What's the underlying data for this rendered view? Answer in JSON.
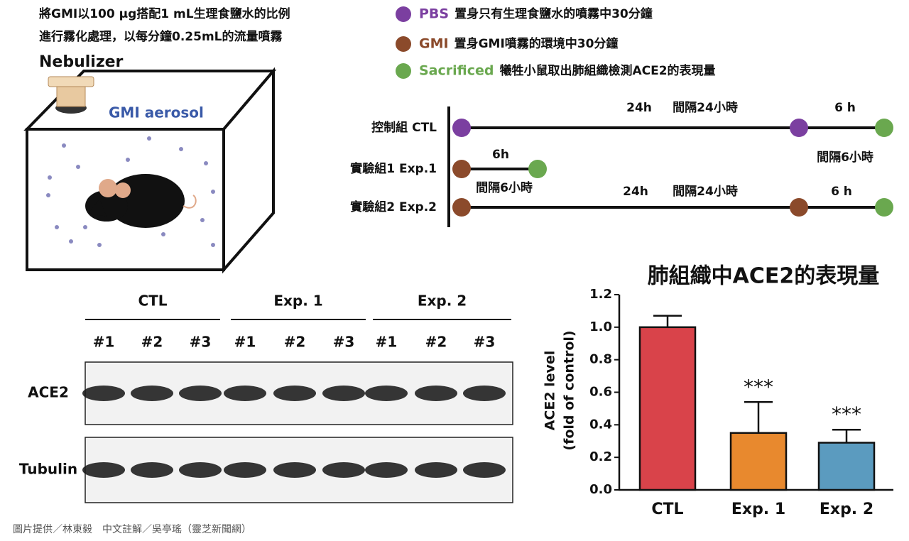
{
  "header": {
    "lines": [
      "將GMI以100 μg搭配1 mL生理食鹽水的比例",
      "進行霧化處理，以每分鐘0.25mL的流量噴霧"
    ]
  },
  "apparatus": {
    "nebulizer": "Nebulizer",
    "aerosol": "GMI aerosol"
  },
  "legend": [
    {
      "key": "PBS",
      "desc": "置身只有生理食鹽水的噴霧中30分鐘",
      "color": "#7b3fa0"
    },
    {
      "key": "GMI",
      "desc": "置身GMI噴霧的環境中30分鐘",
      "color": "#8b4a2b"
    },
    {
      "key": "Sacrificed",
      "desc": "犧牲小鼠取出肺組織檢測ACE2的表現量",
      "color": "#6aa84f"
    }
  ],
  "timeline": {
    "rows": [
      "控制組 CTL",
      "實驗組1 Exp.1",
      "實驗組2 Exp.2"
    ],
    "notes": [
      "24h",
      "間隔24小時",
      "6 h",
      "間隔6小時",
      "6h",
      "間隔6小時",
      "24h",
      "間隔24小時",
      "6 h"
    ]
  },
  "blot": {
    "groups": [
      "CTL",
      "Exp. 1",
      "Exp. 2"
    ],
    "lanes": [
      "#1",
      "#2",
      "#3"
    ],
    "rows": [
      "ACE2",
      "Tubulin"
    ]
  },
  "chart_data": {
    "type": "bar",
    "title": "肺組織中ACE2的表現量",
    "y_label": [
      "ACE2 level",
      "(fold of control)"
    ],
    "categories": [
      "CTL",
      "Exp. 1",
      "Exp. 2"
    ],
    "values": [
      1.0,
      0.35,
      0.29
    ],
    "errors": [
      0.07,
      0.19,
      0.08
    ],
    "annotations": [
      null,
      "***",
      "***"
    ],
    "colors": [
      "#d9434a",
      "#e8892e",
      "#5b9bbf"
    ],
    "ylim": [
      0,
      1.2
    ],
    "yticks": [
      {
        "value": 0,
        "label": "0.0"
      },
      0.2,
      0.4,
      0.6,
      0.8,
      {
        "value": 1,
        "label": "1.0"
      },
      1.2
    ]
  },
  "credit": "圖片提供／林東毅　中文註解／吳亭瑤（靈芝新聞網）"
}
